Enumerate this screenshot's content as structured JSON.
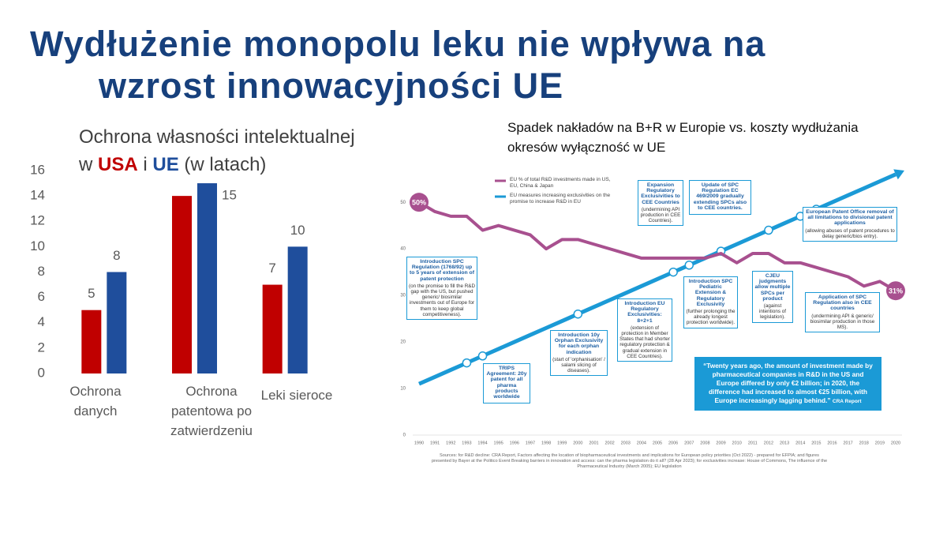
{
  "slide_title": [
    "Wydłużenie monopolu leku nie wpływa na",
    "wzrost innowacyjności UE"
  ],
  "chart_data": [
    {
      "type": "bar",
      "title_parts": [
        "Ochrona własności intelektualnej",
        "w",
        "i",
        "(w latach)"
      ],
      "categories": [
        "Ochrona danych",
        "Ochrona patentowa po zatwierdzeniu",
        "Leki sieroce"
      ],
      "series": [
        {
          "name": "USA",
          "color": "#c00000",
          "values": [
            5,
            14,
            7
          ]
        },
        {
          "name": "UE",
          "color": "#1f4e9c",
          "values": [
            8,
            15,
            10
          ]
        }
      ],
      "ylim": [
        0,
        16
      ],
      "yticks": [
        0,
        2,
        4,
        6,
        8,
        10,
        12,
        14,
        16
      ],
      "grid": false
    },
    {
      "type": "line",
      "title": [
        "Spadek nakładów na B+R w Europie vs. koszty wydłużania",
        "okresów wyłączność w UE"
      ],
      "x": [
        1990,
        1991,
        1992,
        1993,
        1994,
        1995,
        1996,
        1997,
        1998,
        1999,
        2000,
        2001,
        2002,
        2003,
        2004,
        2005,
        2006,
        2007,
        2008,
        2009,
        2010,
        2011,
        2012,
        2013,
        2014,
        2015,
        2016,
        2017,
        2018,
        2019,
        2020
      ],
      "xlim": [
        1990,
        2020
      ],
      "series": [
        {
          "name": "EU % of total R&D investments made in US, EU, China & Japan",
          "color": "#a8508f",
          "values": [
            50,
            48,
            47,
            47,
            44,
            45,
            44,
            43,
            40,
            42,
            42,
            41,
            40,
            39,
            38,
            38,
            38,
            38,
            38,
            39,
            37,
            39,
            39,
            37,
            37,
            36,
            35,
            34,
            32,
            33,
            31
          ],
          "value_labels": [
            "50%",
            null,
            null,
            null,
            null,
            null,
            null,
            null,
            null,
            null,
            null,
            null,
            null,
            null,
            null,
            null,
            null,
            null,
            null,
            null,
            null,
            null,
            null,
            null,
            null,
            null,
            null,
            null,
            null,
            null,
            "31%"
          ]
        },
        {
          "name": "EU measures increasing exclusivities on the promise to increase R&D in EU",
          "color": "#1b9ad6",
          "values": [
            11,
            12.5,
            14,
            15.5,
            17,
            18.5,
            20,
            21.5,
            23,
            24.5,
            26,
            27.5,
            29,
            30.5,
            32,
            33.5,
            35,
            36.5,
            38,
            39.5,
            41,
            42.5,
            44,
            45.5,
            47,
            48.5,
            50,
            51.5,
            53,
            54.5,
            56
          ]
        }
      ],
      "ylim": [
        0,
        58
      ],
      "yticks": [
        0,
        10,
        20,
        30,
        40,
        50
      ],
      "legend": "top-left",
      "annotations": [
        {
          "title": "Introduction SPC Regulation (1768/92) up to 5 years of extension of patent protection",
          "text": "(on the promise to fill the R&D gap with the US, but pushed generic/ biosimilar investments out of Europe for them to keep global competitiveness)."
        },
        {
          "title": "TRIPS Agreement: 20y patent for all pharma products worldwide"
        },
        {
          "title": "Introduction 10y Orphan Exclusivity for each orphan indication",
          "text": "(start of 'orphanisation' / salami slicing of diseases)."
        },
        {
          "title": "Introduction EU Regulatory Exclusivities: 8+2+1",
          "text": "(extension of protection in Member States that had shorter regulatory protection & gradual extension in CEE Countries)."
        },
        {
          "title": "Expansion Regulatory Exclusivities to CEE Countries",
          "text": "(undermining API production in CEE Countries)."
        },
        {
          "title": "Introduction SPC Pediatric Extension & Regulatory Exclusivity",
          "text": "(further prolonging the already longest protection worldwide)."
        },
        {
          "title": "Update of SPC Regulation EC 469/2009 gradually extending SPCs also to CEE countries."
        },
        {
          "title": "CJEU judgments allow multiple SPCs per product",
          "text": "(against intentions of legislation)."
        },
        {
          "title": "European Patent Office removal of all limitations to divisional patent applications",
          "text": "(allowing abuses of patent procedures to delay generic/bios entry)."
        },
        {
          "title": "Application of SPC Regulation also in CEE countries",
          "text": "(undermining API & generic/ biosimilar production in those MS)."
        }
      ],
      "quote": "“Twenty years ago, the amount of investment made by pharmaceutical companies in R&D in the US and Europe differed by only €2 billion; in 2020, the difference had increased to almost €25 billion, with Europe increasingly lagging behind.”",
      "quote_source": "CRA Report",
      "sources": "Sources: for R&D decline: CRA Report, Factors affecting the location of biopharmaceutical investments and implications for European policy priorities (Oct 2022) - prepared for EFPIA; and figures presented by Bayer at the Politico Event Breaking barriers in innovation and access: can the pharma legislation do it all? (28 Apr 2023); for exclusivities increase: House of Commons, The influence of the Pharmaceutical Industry (March 2005); EU legislation"
    }
  ]
}
